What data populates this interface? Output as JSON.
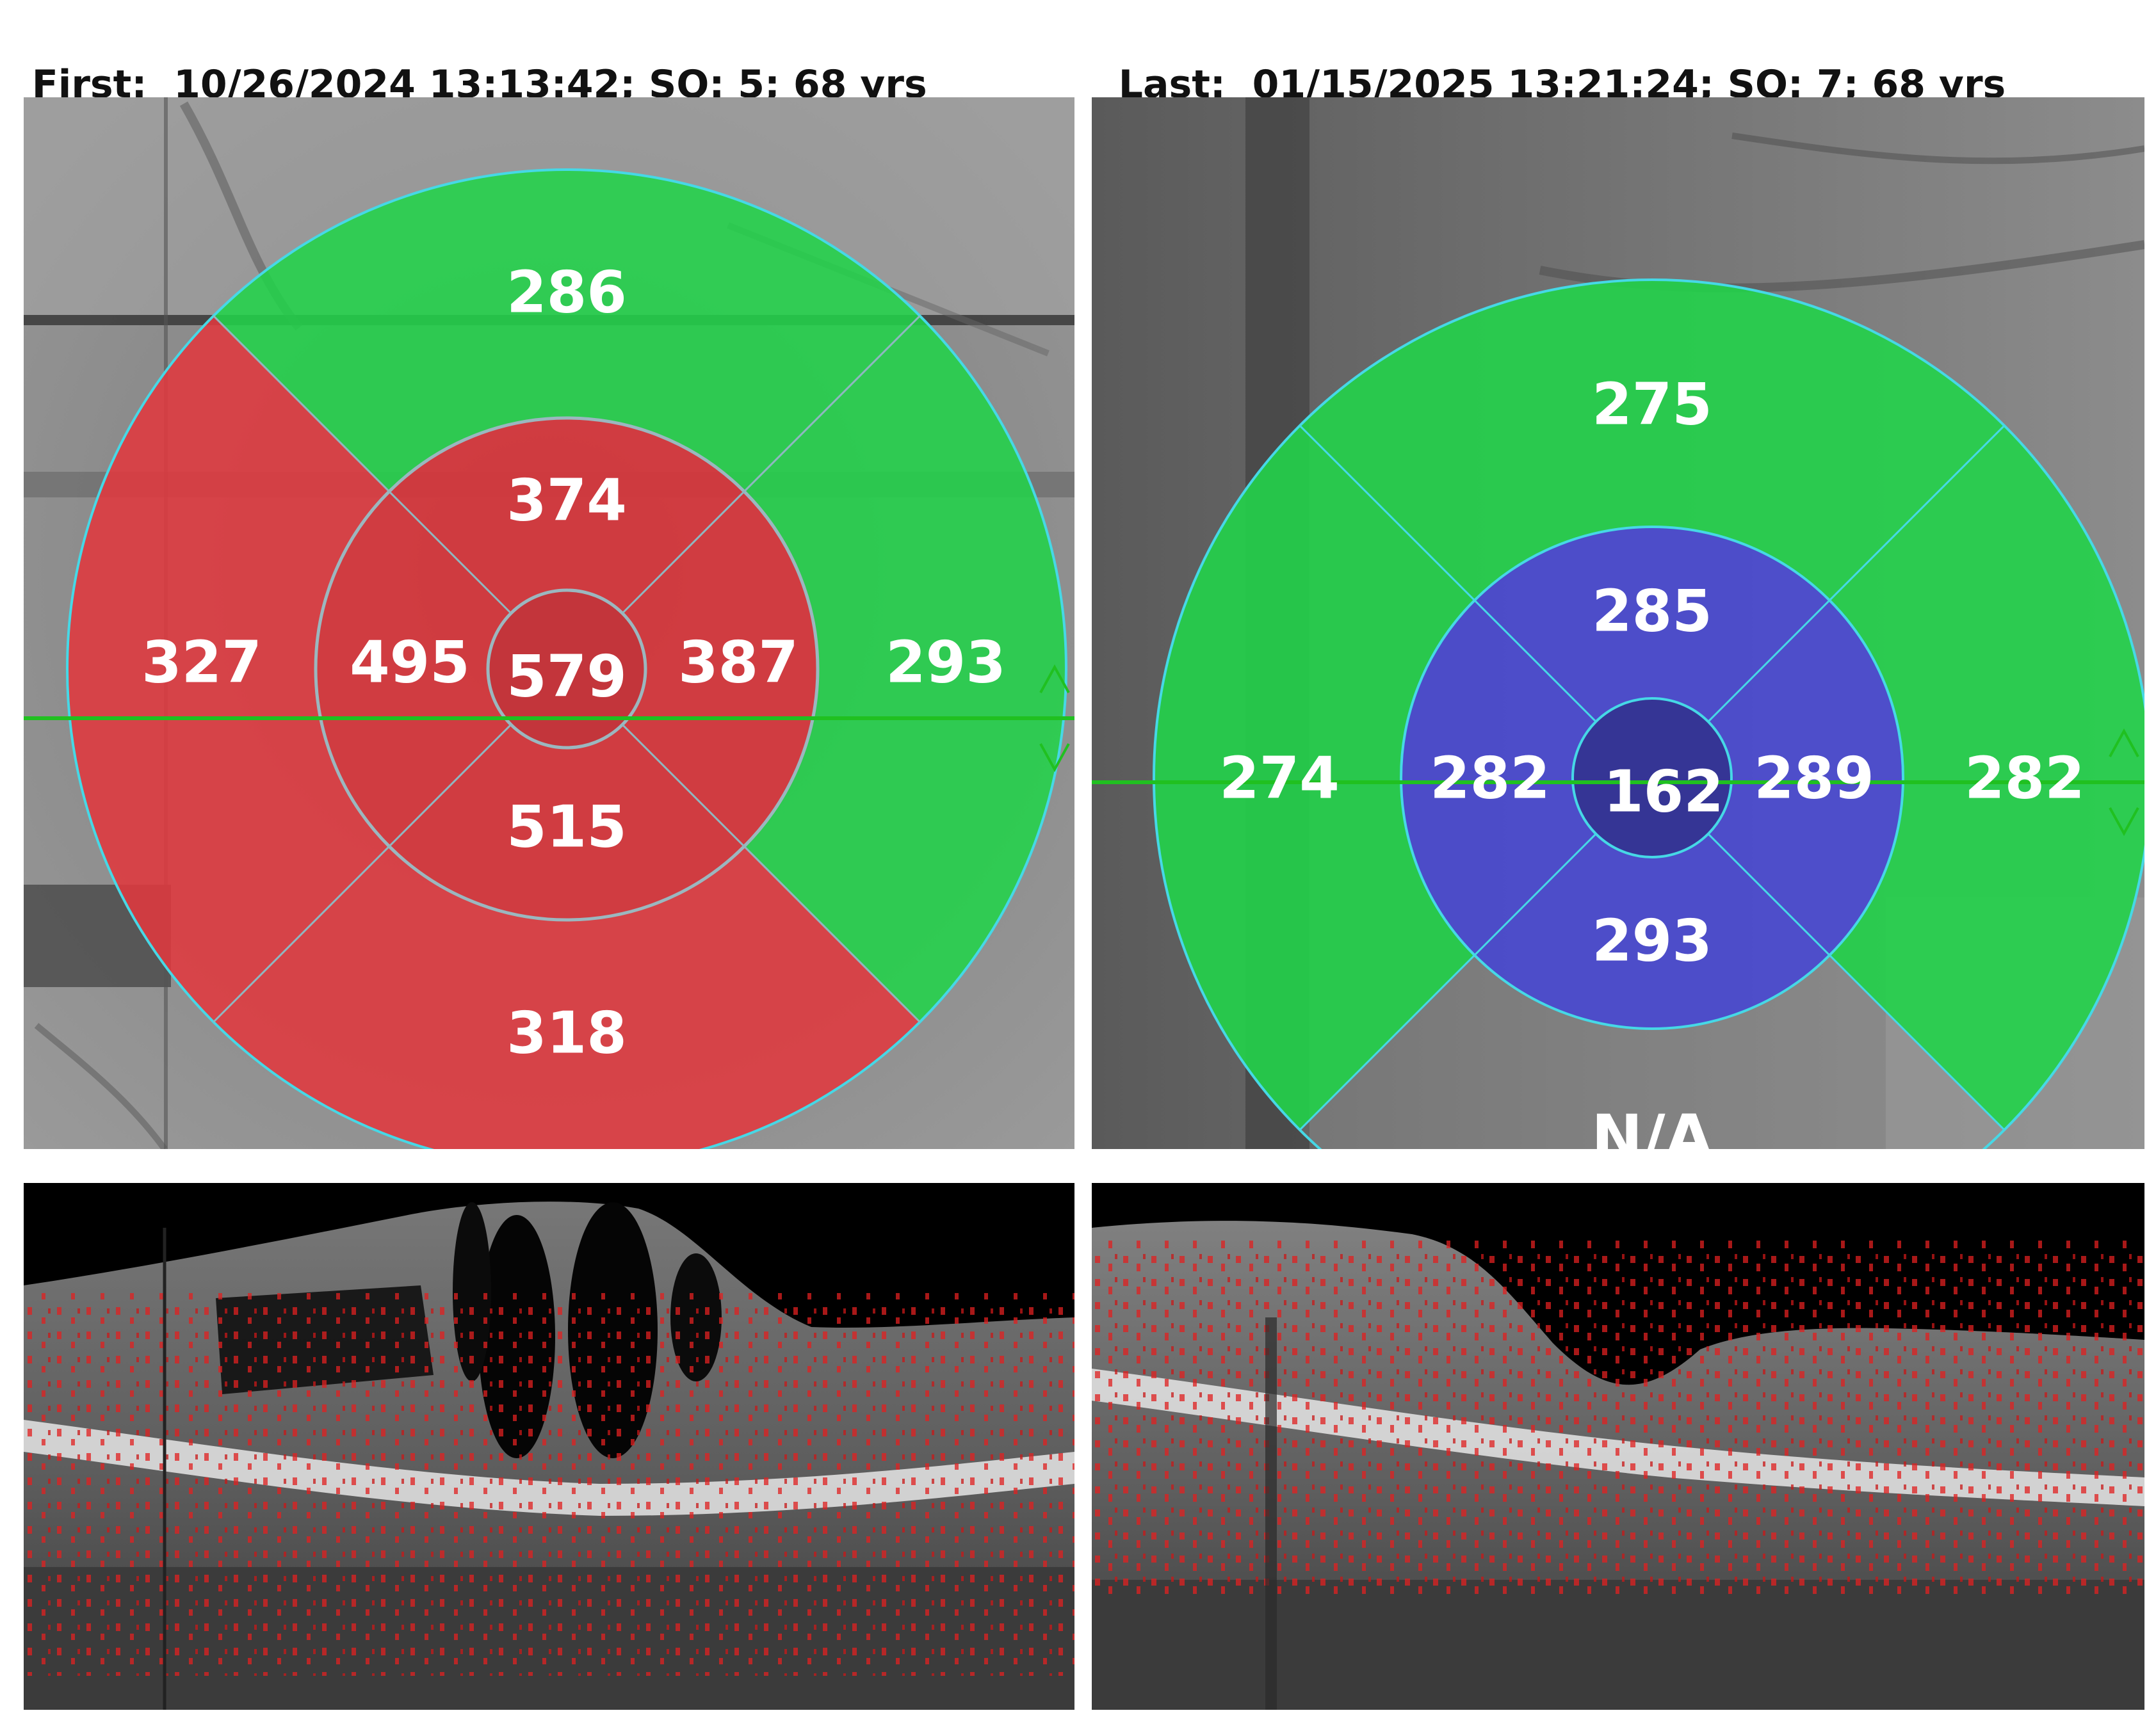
{
  "first_scan": {
    "label": "First:",
    "datetime": "10/26/2024 13:13:42",
    "sq": "SQ: 5",
    "age": "68 yrs",
    "header_text": "First:  10/26/2024 13:13:42; SQ: 5; 68 yrs",
    "thickness_map": {
      "center": "579",
      "inner_superior": "374",
      "inner_nasal": "387",
      "inner_inferior": "515",
      "inner_temporal": "495",
      "outer_superior": "286",
      "outer_nasal": "293",
      "outer_inferior": "318",
      "outer_temporal": "327"
    }
  },
  "last_scan": {
    "label": "Last:",
    "datetime": "01/15/2025 13:21:24",
    "sq": "SQ: 7",
    "age": "68 yrs",
    "header_text": "Last:  01/15/2025 13:21:24; SQ: 7; 68 yrs",
    "thickness_map": {
      "center": "162",
      "inner_superior": "285",
      "inner_nasal": "289",
      "inner_inferior": "293",
      "inner_temporal": "282",
      "outer_superior": "275",
      "outer_nasal": "282",
      "outer_inferior": "N/A",
      "outer_temporal": "274"
    }
  },
  "colors": {
    "thick_red": "#e0393f",
    "normal_green": "#22d34a",
    "thin_blue": "#4a4ad0",
    "grid_line": "#46d8e6",
    "scan_line": "#20c020"
  }
}
